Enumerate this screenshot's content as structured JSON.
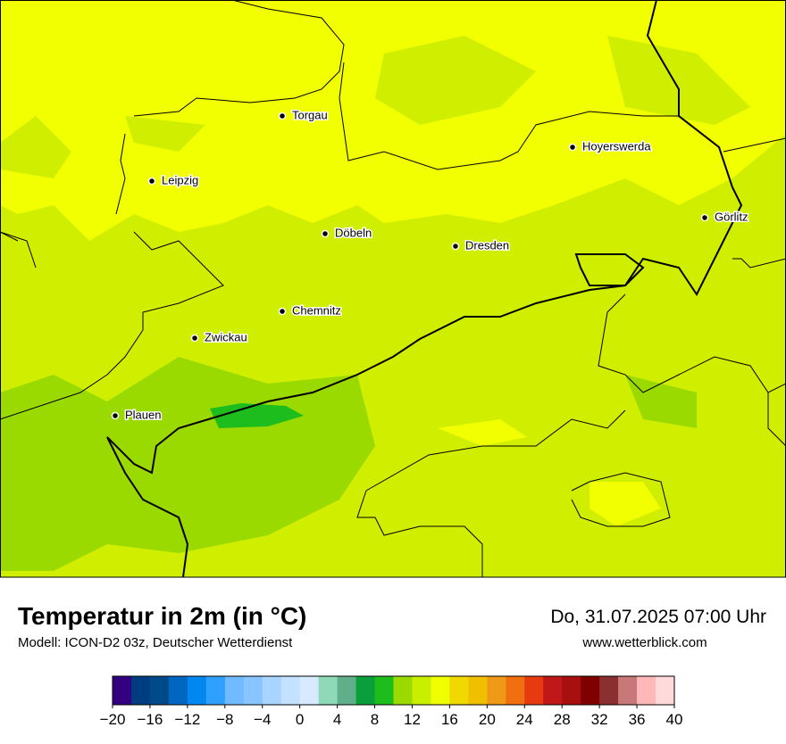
{
  "map": {
    "cities": [
      "Torgau",
      "Hoyerswerda",
      "Leipzig",
      "Görlitz",
      "Döbeln",
      "Dresden",
      "Chemnitz",
      "Zwickau",
      "Plauen"
    ]
  },
  "footer": {
    "title": "Temperatur in 2m (in °C)",
    "model": "Modell: ICON-D2 03z, Deutscher Wetterdienst",
    "datetime": "Do, 31.07.2025 07:00 Uhr",
    "url": "www.wetterblick.com"
  },
  "colorbar": {
    "range": [
      -20,
      40
    ],
    "colors": [
      "#330080",
      "#003d80",
      "#004a8a",
      "#0066c0",
      "#0088f0",
      "#30a0ff",
      "#70baff",
      "#88c4ff",
      "#a8d4ff",
      "#c4e2ff",
      "#d8eaff",
      "#8fd9b8",
      "#5faf8a",
      "#0a9f3a",
      "#1ebd1e",
      "#9ada00",
      "#c8ee00",
      "#f0ff00",
      "#f0d800",
      "#f0c000",
      "#f09818",
      "#f07010",
      "#e83a10",
      "#c01818",
      "#a81010",
      "#800000",
      "#8a3030",
      "#c87878",
      "#ffb8b8",
      "#ffdada"
    ],
    "ticks": [
      {
        "value": -20,
        "label": "−20"
      },
      {
        "value": -16,
        "label": "−16"
      },
      {
        "value": -12,
        "label": "−12"
      },
      {
        "value": -8,
        "label": "−8"
      },
      {
        "value": -4,
        "label": "−4"
      },
      0,
      4,
      8,
      12,
      16,
      20,
      24,
      28,
      32,
      36,
      40
    ]
  }
}
